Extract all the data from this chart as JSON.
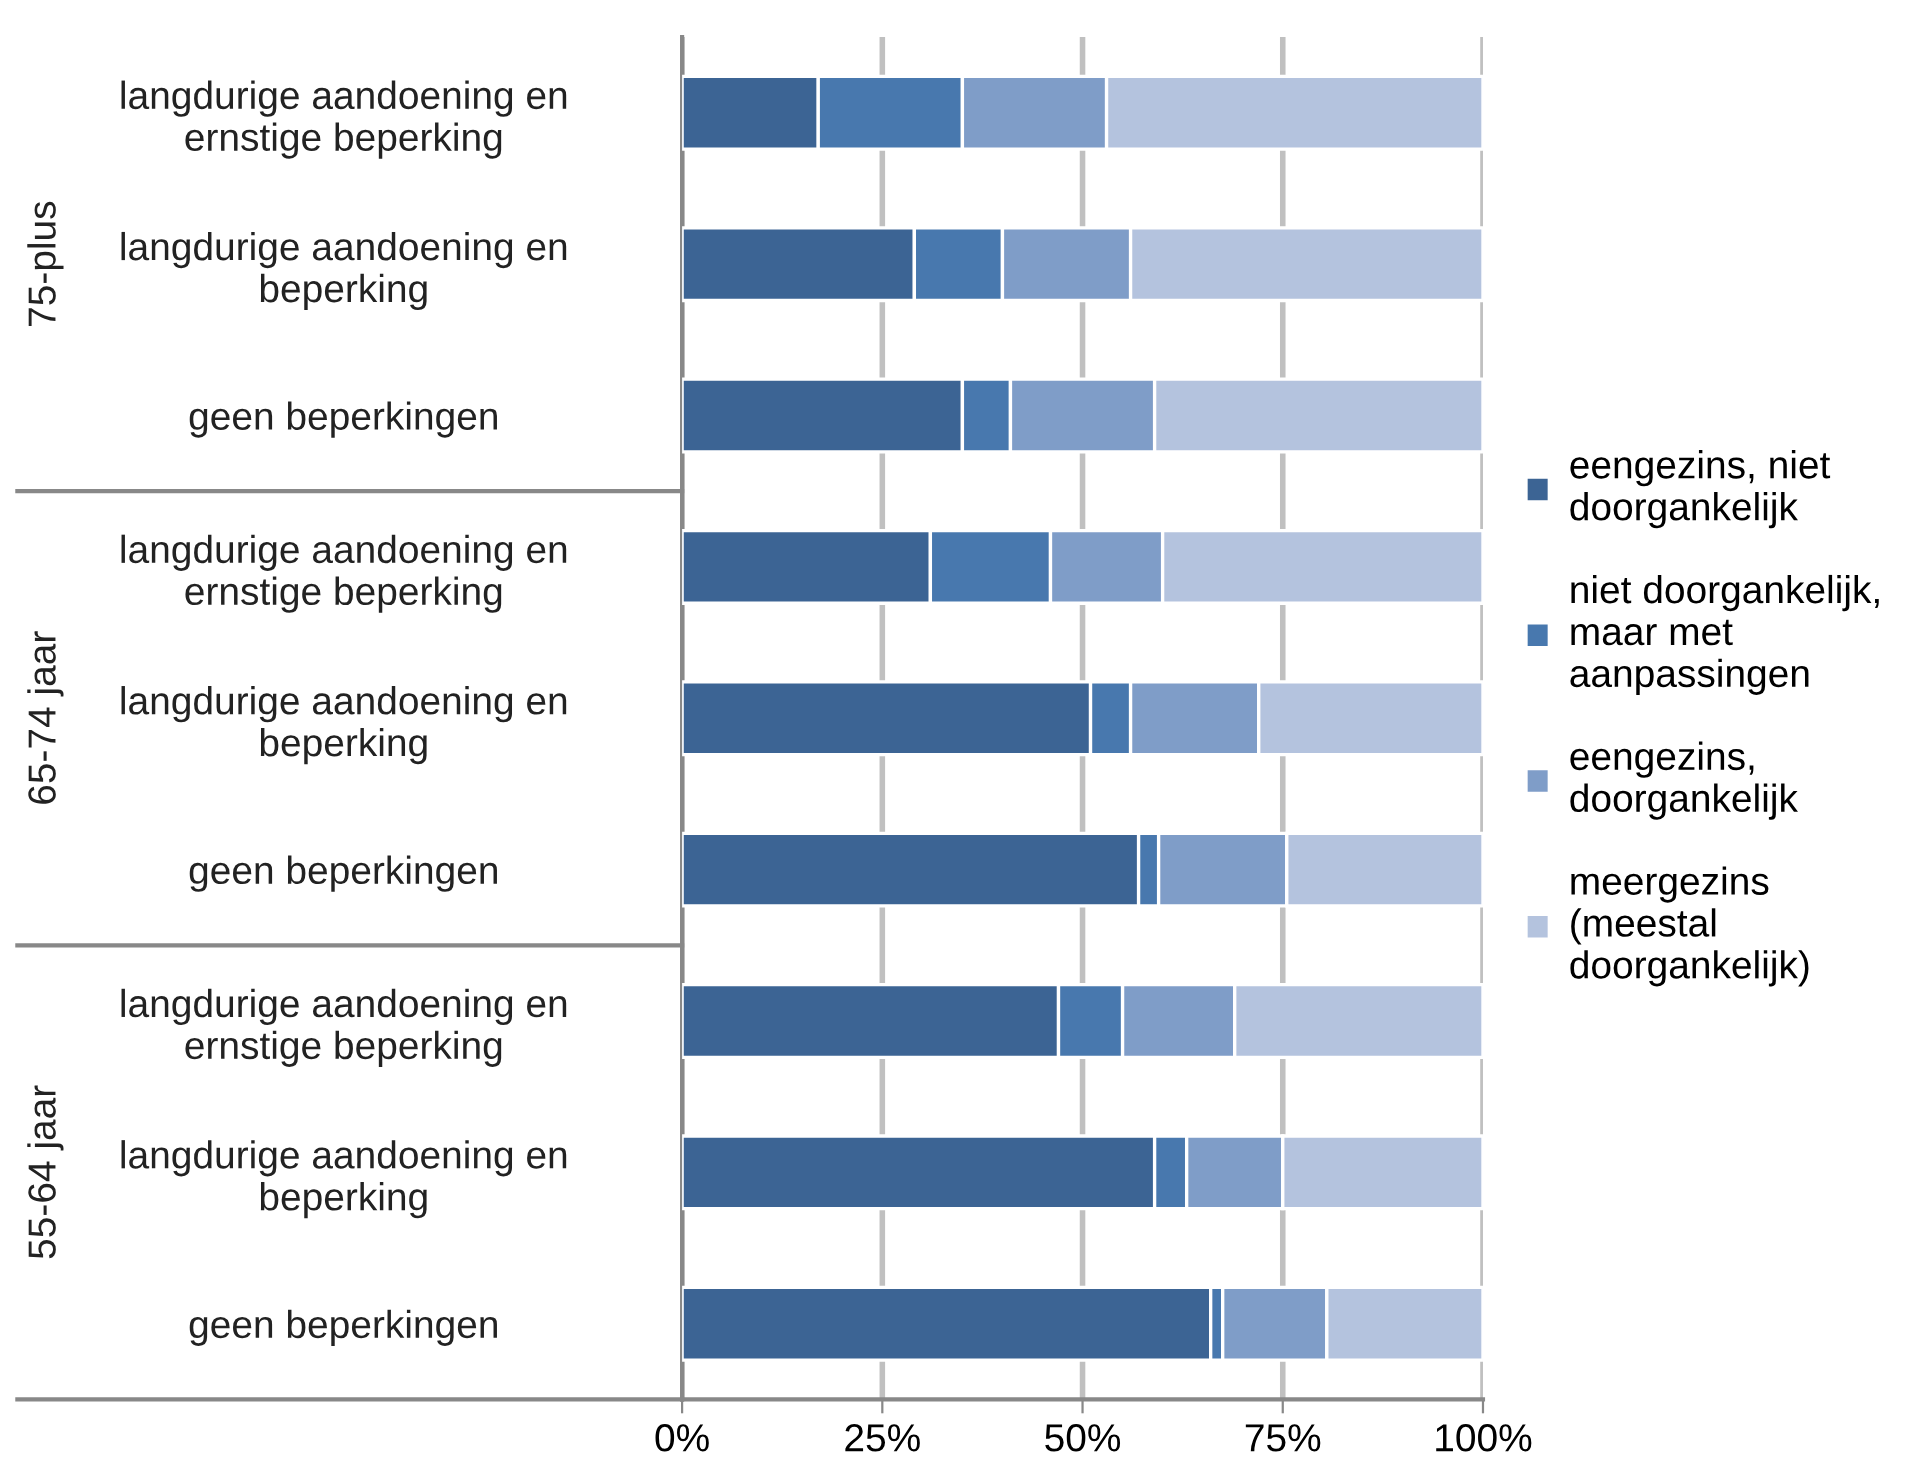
{
  "chart_data": {
    "type": "bar",
    "orientation": "horizontal",
    "stacked": true,
    "categories": [
      "langdurige aandoening en\nernstige beperking",
      "langdurige aandoening en\nbeperking",
      "geen beperkingen",
      "langdurige aandoening en\nernstige beperking",
      "langdurige aandoening en\nbeperking",
      "geen beperkingen",
      "langdurige aandoening en\nernstige beperking",
      "langdurige aandoening en\nbeperking",
      "geen beperkingen"
    ],
    "series": [
      {
        "name": "eengezins, niet\ndoorgankelijk",
        "color": "#3c6494",
        "values": [
          17,
          29,
          35,
          31,
          51,
          57,
          47,
          59,
          66
        ]
      },
      {
        "name": "niet doorgankelijk,\nmaar met\naanpassingen",
        "color": "#4878ae",
        "values": [
          18,
          11,
          6,
          15,
          5,
          2.5,
          8,
          4,
          1.5
        ]
      },
      {
        "name": "eengezins,\ndoorgankelijk",
        "color": "#7f9dc8",
        "values": [
          18,
          16,
          18,
          14,
          16,
          16,
          14,
          12,
          13
        ]
      },
      {
        "name": "meergezins\n(meestal\ndoorgankelijk)",
        "color": "#b4c3de",
        "values": [
          47,
          44,
          41,
          40,
          28,
          24.5,
          31,
          25,
          19.5
        ]
      }
    ],
    "annotations": [
      "75-plus",
      "65-74 jaar",
      "55-64 jaar"
    ],
    "xlim": [
      0,
      100
    ],
    "xticks": [
      {
        "value": 0,
        "label": "0%"
      },
      {
        "value": 25,
        "label": "25%"
      },
      {
        "value": 50,
        "label": "50%"
      },
      {
        "value": 75,
        "label": "75%"
      },
      {
        "value": 100,
        "label": "100%"
      }
    ],
    "grid": "x",
    "legend": "right"
  }
}
